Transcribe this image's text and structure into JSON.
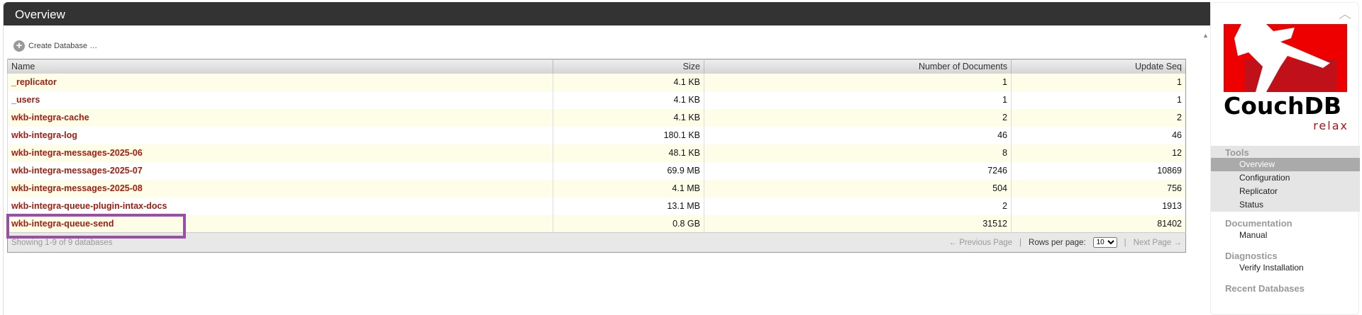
{
  "header": {
    "title": "Overview"
  },
  "toolbar": {
    "create_label": "Create Database …"
  },
  "table": {
    "columns": [
      "Name",
      "Size",
      "Number of Documents",
      "Update Seq"
    ],
    "rows": [
      {
        "name": "_replicator",
        "size": "4.1 KB",
        "docs": "1",
        "seq": "1"
      },
      {
        "name": "_users",
        "size": "4.1 KB",
        "docs": "1",
        "seq": "1"
      },
      {
        "name": "wkb-integra-cache",
        "size": "4.1 KB",
        "docs": "2",
        "seq": "2"
      },
      {
        "name": "wkb-integra-log",
        "size": "180.1 KB",
        "docs": "46",
        "seq": "46"
      },
      {
        "name": "wkb-integra-messages-2025-06",
        "size": "48.1 KB",
        "docs": "8",
        "seq": "12"
      },
      {
        "name": "wkb-integra-messages-2025-07",
        "size": "69.9 MB",
        "docs": "7246",
        "seq": "10869"
      },
      {
        "name": "wkb-integra-messages-2025-08",
        "size": "4.1 MB",
        "docs": "504",
        "seq": "756"
      },
      {
        "name": "wkb-integra-queue-plugin-intax-docs",
        "size": "13.1 MB",
        "docs": "2",
        "seq": "1913"
      },
      {
        "name": "wkb-integra-queue-send",
        "size": "0.8 GB",
        "docs": "31512",
        "seq": "81402"
      }
    ],
    "footer": {
      "showing": "Showing 1-9 of 9 databases",
      "prev": "← Previous Page",
      "sep": "|",
      "rows_per_page": "Rows per page:",
      "rows_value": "10",
      "next": "Next Page →"
    }
  },
  "highlight_color": "#9b4ea8",
  "sidebar": {
    "logo_text": "CouchDB",
    "logo_tagline": "relax",
    "sections": [
      {
        "title": "Tools",
        "items": [
          "Overview",
          "Configuration",
          "Replicator",
          "Status"
        ]
      },
      {
        "title": "Documentation",
        "items": [
          "Manual"
        ]
      },
      {
        "title": "Diagnostics",
        "items": [
          "Verify Installation"
        ]
      },
      {
        "title": "Recent Databases",
        "items": []
      }
    ]
  }
}
